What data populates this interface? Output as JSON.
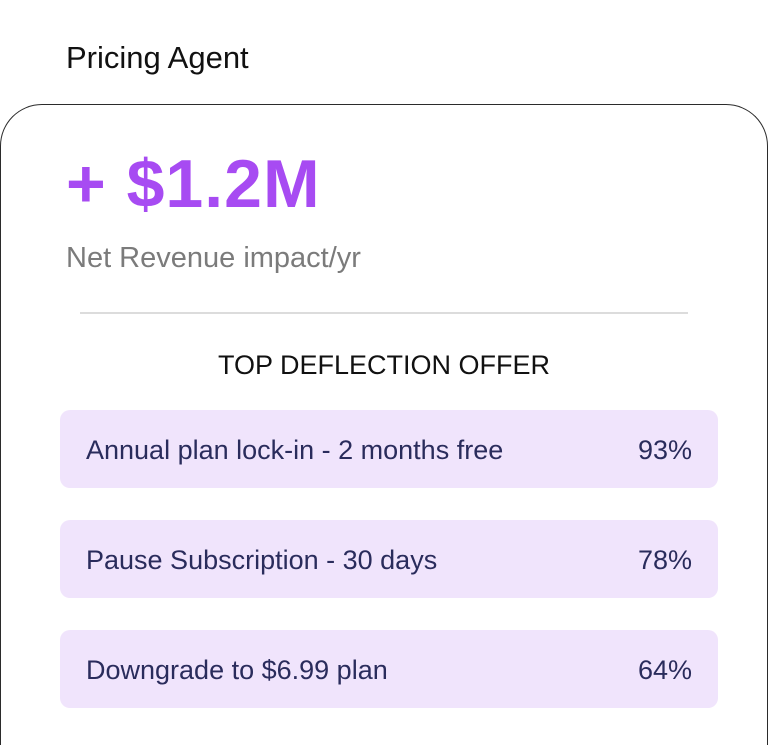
{
  "header": {
    "title": "Pricing Agent"
  },
  "card": {
    "metric": "+ $1.2M",
    "metric_label": "Net Revenue impact/yr",
    "section_title": "TOP DEFLECTION OFFER",
    "offers": [
      {
        "label": "Annual plan lock-in - 2 months free",
        "rate": "93%"
      },
      {
        "label": "Pause Subscription - 30 days",
        "rate": "78%"
      },
      {
        "label": "Downgrade to $6.99 plan",
        "rate": "64%"
      }
    ]
  }
}
